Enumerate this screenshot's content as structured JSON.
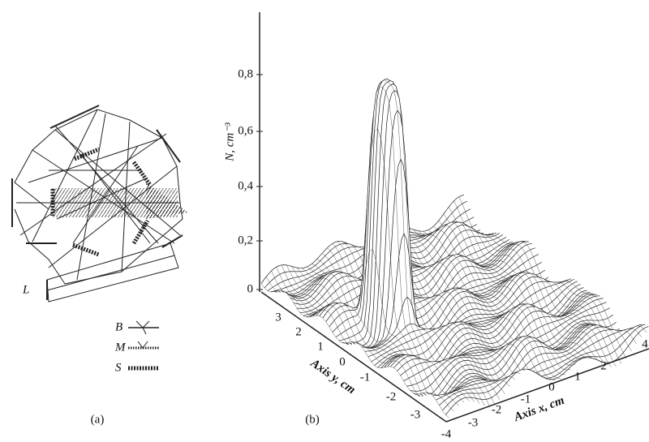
{
  "panel_a": {
    "label": "(a)",
    "laser": "L",
    "legend": [
      "B",
      "M",
      "S"
    ]
  },
  "panel_b": {
    "label": "(b)",
    "z_label": "N, cm⁻³",
    "z_ticks": [
      "0",
      "0,2",
      "0,4",
      "0,6",
      "0,8"
    ],
    "y_label": "Axis y, cm",
    "y_ticks": [
      "3",
      "2",
      "1",
      "0",
      "-1",
      "-2",
      "-3"
    ],
    "x_label": "Axis x, cm",
    "x_ticks": [
      "-4",
      "-3",
      "-2",
      "-1",
      "0",
      "1",
      "2",
      "4"
    ]
  }
}
